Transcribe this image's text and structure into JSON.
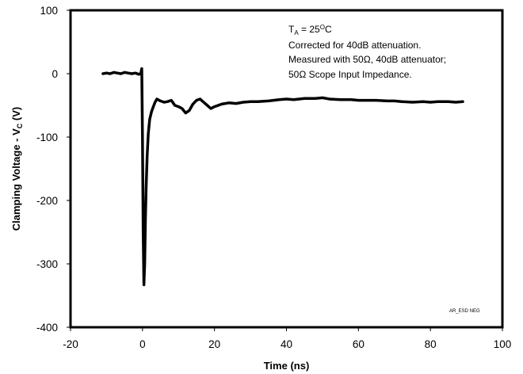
{
  "chart_data": {
    "type": "line",
    "title": "",
    "xlabel": "Time (ns)",
    "ylabel": {
      "main": "Clamping Voltage - V",
      "sub": "C",
      "unit": " (V)"
    },
    "xlim": [
      -20,
      100
    ],
    "ylim": [
      -400,
      100
    ],
    "xticks": [
      "-20",
      "0",
      "20",
      "40",
      "60",
      "80",
      "100"
    ],
    "yticks": [
      "100",
      "0",
      "-100",
      "-200",
      "-300",
      "-400"
    ],
    "grid": false,
    "legend": "none",
    "line_color": "#000000",
    "annotations": {
      "condition": {
        "prefix": "T",
        "sub": "A",
        "mid": " = 25",
        "sup": "O",
        "suffix": "C"
      },
      "line2": "Corrected for 40dB attenuation.",
      "line3": "Measured with 50Ω, 40dB attenuator;",
      "line4": "50Ω Scope Input Impedance."
    },
    "figure_code": "AR_ESD NEG",
    "series": [
      {
        "x": [
          -11,
          -10,
          -9,
          -8,
          -7,
          -6,
          -5,
          -4,
          -3,
          -2,
          -1,
          -0.5,
          -0.2,
          0,
          0.2,
          0.4,
          0.6,
          0.8,
          1.0,
          1.3,
          1.6,
          2.0,
          2.5,
          3.0,
          3.5,
          4.0,
          5,
          6,
          7,
          8,
          9,
          10,
          11,
          12,
          13,
          14,
          15,
          16,
          17,
          18,
          19,
          20,
          22,
          24,
          26,
          28,
          30,
          32,
          35,
          38,
          40,
          42,
          45,
          48,
          50,
          52,
          55,
          58,
          60,
          62,
          65,
          68,
          70,
          72,
          75,
          78,
          80,
          82,
          85,
          87,
          89
        ],
        "y": [
          0,
          1,
          0,
          2,
          1,
          0,
          2,
          1,
          0,
          1,
          -1,
          0,
          8,
          -100,
          -250,
          -333,
          -300,
          -230,
          -180,
          -130,
          -95,
          -72,
          -60,
          -52,
          -45,
          -40,
          -43,
          -45,
          -44,
          -42,
          -50,
          -52,
          -55,
          -62,
          -58,
          -48,
          -42,
          -40,
          -45,
          -50,
          -55,
          -52,
          -48,
          -46,
          -47,
          -45,
          -44,
          -44,
          -43,
          -41,
          -40,
          -41,
          -39,
          -39,
          -38,
          -40,
          -41,
          -41,
          -42,
          -42,
          -42,
          -43,
          -43,
          -44,
          -45,
          -44,
          -45,
          -44,
          -44,
          -45,
          -44
        ]
      }
    ]
  }
}
